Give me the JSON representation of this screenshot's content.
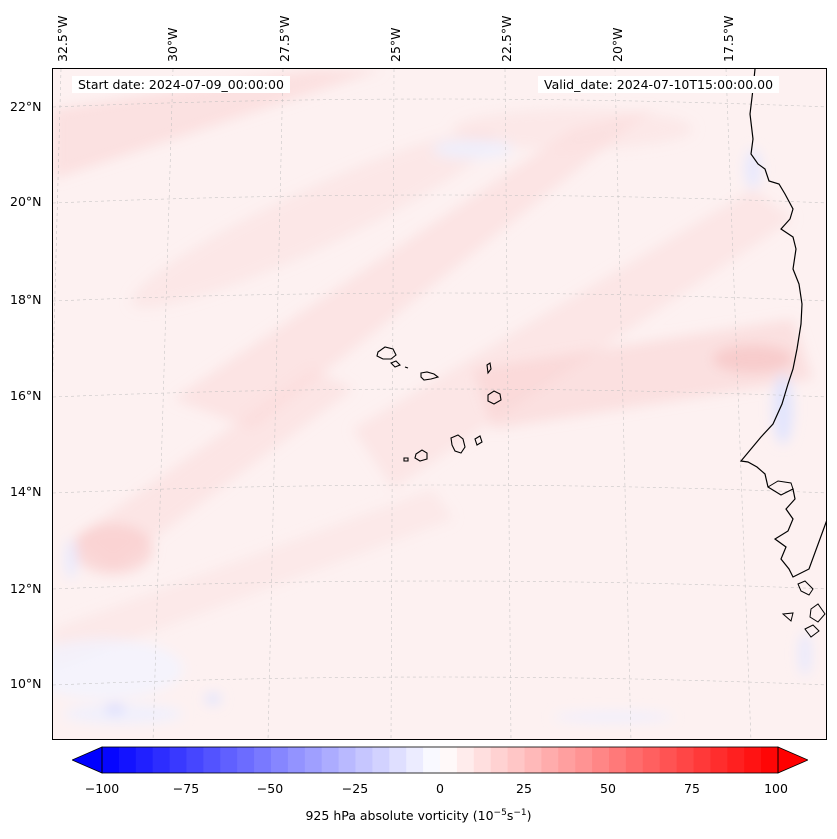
{
  "map": {
    "start_date": "Start date: 2024-07-09_00:00:00",
    "valid_date": "Valid_date: 2024-07-10T15:00:00.00",
    "lon_labels": [
      "32.5°W",
      "30°W",
      "27.5°W",
      "25°W",
      "22.5°W",
      "20°W",
      "17.5°W"
    ],
    "lat_labels": [
      "22°N",
      "20°N",
      "18°N",
      "16°N",
      "14°N",
      "12°N",
      "10°N"
    ],
    "field": "925 hPa absolute vorticity"
  },
  "colorbar": {
    "ticks": [
      "−100",
      "−75",
      "−50",
      "−25",
      "0",
      "25",
      "50",
      "75",
      "100"
    ],
    "min": -100,
    "max": 100,
    "colormap": "bwr",
    "low_color": "#0000ff",
    "mid_color": "#ffffff",
    "high_color": "#ff0000",
    "label_prefix": "925 hPa absolute vorticity (10",
    "label_exp1": "−5",
    "label_mid": "s",
    "label_exp2": "−1",
    "label_suffix": ")"
  }
}
